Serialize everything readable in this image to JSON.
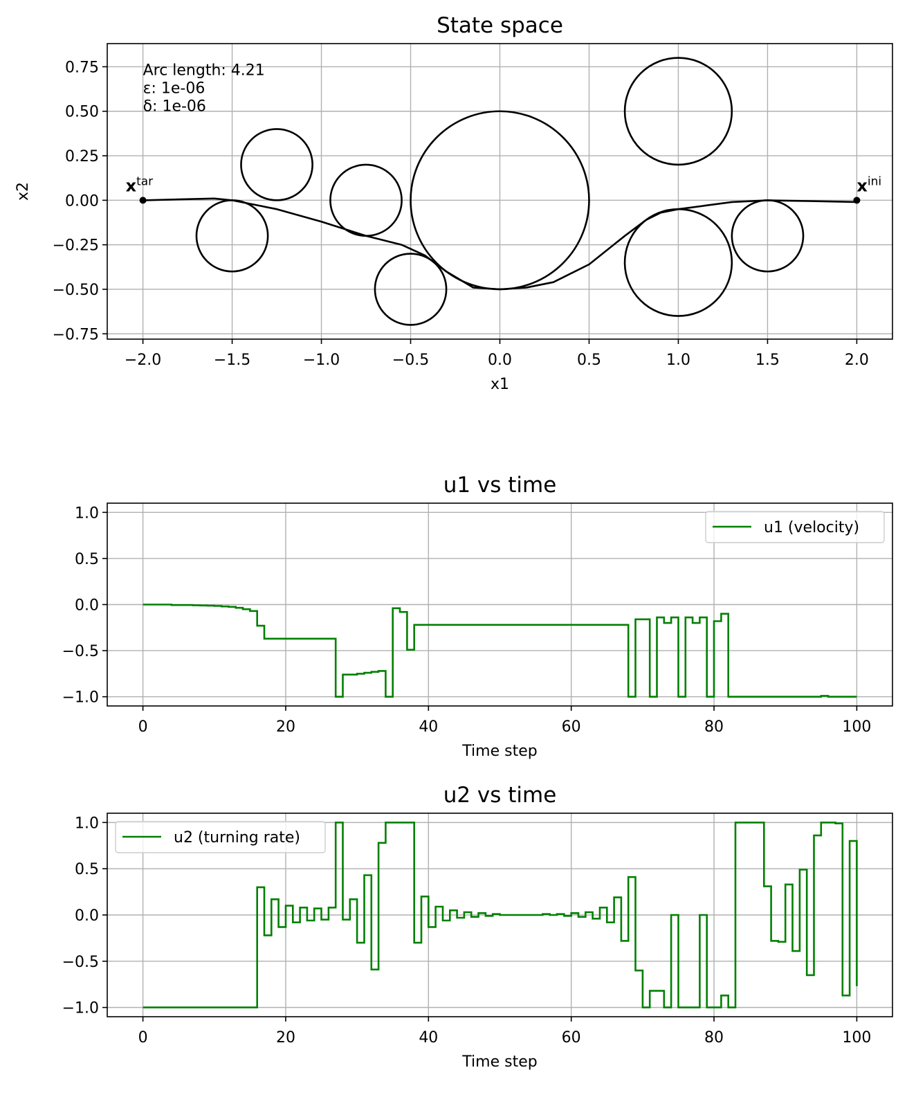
{
  "chart_data": [
    {
      "type": "scatter",
      "title": "State space",
      "xlabel": "x1",
      "ylabel": "x2",
      "xlim": [
        -2.2,
        2.2
      ],
      "ylim": [
        -0.78,
        0.88
      ],
      "xticks": [
        -2.0,
        -1.5,
        -1.0,
        -0.5,
        0.0,
        0.5,
        1.0,
        1.5,
        2.0
      ],
      "xtick_labels": [
        "−2.0",
        "−1.5",
        "−1.0",
        "−0.5",
        "0.0",
        "0.5",
        "1.0",
        "1.5",
        "2.0"
      ],
      "yticks": [
        -0.75,
        -0.5,
        -0.25,
        0.0,
        0.25,
        0.5,
        0.75
      ],
      "ytick_labels": [
        "−0.75",
        "−0.50",
        "−0.25",
        "0.00",
        "0.25",
        "0.50",
        "0.75"
      ],
      "grid": true,
      "annotations": [
        "Arc length: 4.21",
        "ε: 1e-06",
        "δ: 1e-06"
      ],
      "obstacles": [
        {
          "cx": -1.5,
          "cy": -0.2,
          "r": 0.2
        },
        {
          "cx": -1.25,
          "cy": 0.2,
          "r": 0.2
        },
        {
          "cx": -0.75,
          "cy": 0.0,
          "r": 0.2
        },
        {
          "cx": -0.5,
          "cy": -0.5,
          "r": 0.2
        },
        {
          "cx": 0.0,
          "cy": 0.0,
          "r": 0.5
        },
        {
          "cx": 1.0,
          "cy": 0.5,
          "r": 0.3
        },
        {
          "cx": 1.0,
          "cy": -0.35,
          "r": 0.3
        },
        {
          "cx": 1.5,
          "cy": -0.2,
          "r": 0.2
        }
      ],
      "path": [
        [
          2.0,
          -0.01
        ],
        [
          1.75,
          -0.005
        ],
        [
          1.5,
          0.0
        ],
        [
          1.3,
          -0.01
        ],
        [
          1.15,
          -0.03
        ],
        [
          1.0,
          -0.05
        ],
        [
          0.9,
          -0.07
        ],
        [
          0.82,
          -0.11
        ],
        [
          0.7,
          -0.2
        ],
        [
          0.5,
          -0.36
        ],
        [
          0.3,
          -0.46
        ],
        [
          0.15,
          -0.49
        ],
        [
          0.0,
          -0.5
        ],
        [
          -0.15,
          -0.49
        ],
        [
          -0.3,
          -0.4
        ],
        [
          -0.42,
          -0.31
        ],
        [
          -0.55,
          -0.25
        ],
        [
          -0.75,
          -0.2
        ],
        [
          -1.0,
          -0.12
        ],
        [
          -1.25,
          -0.05
        ],
        [
          -1.5,
          0.0
        ],
        [
          -1.6,
          0.01
        ],
        [
          -1.8,
          0.005
        ],
        [
          -2.0,
          0.0
        ]
      ],
      "points": [
        {
          "label": "x",
          "sup": "tar",
          "x": -2.0,
          "y": 0.0
        },
        {
          "label": "x",
          "sup": "ini",
          "x": 2.0,
          "y": 0.0
        }
      ]
    },
    {
      "type": "line",
      "title": "u1 vs time",
      "xlabel": "Time step",
      "ylabel": "",
      "xlim": [
        -5,
        105
      ],
      "ylim": [
        -1.1,
        1.1
      ],
      "xticks": [
        0,
        20,
        40,
        60,
        80,
        100
      ],
      "xtick_labels": [
        "0",
        "20",
        "40",
        "60",
        "80",
        "100"
      ],
      "yticks": [
        1.0,
        0.5,
        0.0,
        -0.5,
        -1.0
      ],
      "ytick_labels": [
        "1.0",
        "0.5",
        "0.0",
        "−0.5",
        "−1.0"
      ],
      "grid": true,
      "legend_position": "top-right",
      "series": [
        {
          "name": "u1 (velocity)",
          "color": "#008000",
          "x": [
            0,
            1,
            2,
            3,
            4,
            5,
            6,
            7,
            8,
            9,
            10,
            11,
            12,
            13,
            14,
            15,
            16,
            17,
            18,
            19,
            20,
            21,
            22,
            23,
            24,
            25,
            26,
            27,
            28,
            29,
            30,
            31,
            32,
            33,
            34,
            35,
            36,
            37,
            38,
            39,
            40,
            41,
            42,
            43,
            44,
            45,
            46,
            47,
            48,
            49,
            50,
            51,
            52,
            53,
            54,
            55,
            56,
            57,
            58,
            59,
            60,
            61,
            62,
            63,
            64,
            65,
            66,
            67,
            68,
            69,
            70,
            71,
            72,
            73,
            74,
            75,
            76,
            77,
            78,
            79,
            80,
            81,
            82,
            83,
            84,
            85,
            86,
            87,
            88,
            89,
            90,
            91,
            92,
            93,
            94,
            95,
            96,
            97,
            98,
            99,
            100
          ],
          "values": [
            0.0,
            0.0,
            0.0,
            0.0,
            -0.005,
            -0.005,
            -0.005,
            -0.008,
            -0.01,
            -0.012,
            -0.015,
            -0.02,
            -0.025,
            -0.035,
            -0.05,
            -0.07,
            -0.23,
            -0.37,
            -0.37,
            -0.37,
            -0.37,
            -0.37,
            -0.37,
            -0.37,
            -0.37,
            -0.37,
            -0.37,
            -1.0,
            -0.76,
            -0.76,
            -0.75,
            -0.74,
            -0.73,
            -0.72,
            -1.0,
            -0.04,
            -0.08,
            -0.49,
            -0.22,
            -0.22,
            -0.22,
            -0.22,
            -0.22,
            -0.22,
            -0.22,
            -0.22,
            -0.22,
            -0.22,
            -0.22,
            -0.22,
            -0.22,
            -0.22,
            -0.22,
            -0.22,
            -0.22,
            -0.22,
            -0.22,
            -0.22,
            -0.22,
            -0.22,
            -0.22,
            -0.22,
            -0.22,
            -0.22,
            -0.22,
            -0.22,
            -0.22,
            -0.22,
            -1.0,
            -0.16,
            -0.16,
            -1.0,
            -0.14,
            -0.2,
            -0.14,
            -1.0,
            -0.14,
            -0.2,
            -0.14,
            -1.0,
            -0.18,
            -0.1,
            -1.0,
            -1.0,
            -1.0,
            -1.0,
            -1.0,
            -1.0,
            -1.0,
            -1.0,
            -1.0,
            -1.0,
            -1.0,
            -1.0,
            -1.0,
            -0.99,
            -1.0,
            -1.0,
            -1.0,
            -1.0,
            -1.0
          ]
        }
      ]
    },
    {
      "type": "line",
      "title": "u2 vs time",
      "xlabel": "Time step",
      "ylabel": "",
      "xlim": [
        -5,
        105
      ],
      "ylim": [
        -1.1,
        1.1
      ],
      "xticks": [
        0,
        20,
        40,
        60,
        80,
        100
      ],
      "xtick_labels": [
        "0",
        "20",
        "40",
        "60",
        "80",
        "100"
      ],
      "yticks": [
        1.0,
        0.5,
        0.0,
        -0.5,
        -1.0
      ],
      "ytick_labels": [
        "1.0",
        "0.5",
        "0.0",
        "−0.5",
        "−1.0"
      ],
      "grid": true,
      "legend_position": "top-left",
      "series": [
        {
          "name": "u2 (turning rate)",
          "color": "#008000",
          "x": [
            0,
            1,
            2,
            3,
            4,
            5,
            6,
            7,
            8,
            9,
            10,
            11,
            12,
            13,
            14,
            15,
            16,
            17,
            18,
            19,
            20,
            21,
            22,
            23,
            24,
            25,
            26,
            27,
            28,
            29,
            30,
            31,
            32,
            33,
            34,
            35,
            36,
            37,
            38,
            39,
            40,
            41,
            42,
            43,
            44,
            45,
            46,
            47,
            48,
            49,
            50,
            51,
            52,
            53,
            54,
            55,
            56,
            57,
            58,
            59,
            60,
            61,
            62,
            63,
            64,
            65,
            66,
            67,
            68,
            69,
            70,
            71,
            72,
            73,
            74,
            75,
            76,
            77,
            78,
            79,
            80,
            81,
            82,
            83,
            84,
            85,
            86,
            87,
            88,
            89,
            90,
            91,
            92,
            93,
            94,
            95,
            96,
            97,
            98,
            99,
            100
          ],
          "values": [
            -1.0,
            -1.0,
            -1.0,
            -1.0,
            -1.0,
            -1.0,
            -1.0,
            -1.0,
            -1.0,
            -1.0,
            -1.0,
            -1.0,
            -1.0,
            -1.0,
            -1.0,
            -1.0,
            0.3,
            -0.22,
            0.17,
            -0.13,
            0.1,
            -0.08,
            0.08,
            -0.06,
            0.07,
            -0.05,
            0.08,
            1.0,
            -0.05,
            0.17,
            -0.3,
            0.43,
            -0.59,
            0.78,
            1.0,
            1.0,
            1.0,
            1.0,
            -0.3,
            0.2,
            -0.13,
            0.09,
            -0.06,
            0.05,
            -0.03,
            0.03,
            -0.02,
            0.02,
            -0.01,
            0.01,
            0.0,
            0.0,
            0.0,
            0.0,
            0.0,
            0.0,
            0.01,
            0.0,
            0.01,
            -0.01,
            0.02,
            -0.02,
            0.03,
            -0.04,
            0.08,
            -0.08,
            0.19,
            -0.28,
            0.41,
            -0.6,
            -1.0,
            -0.82,
            -0.82,
            -1.0,
            0.0,
            -1.0,
            -1.0,
            -1.0,
            0.0,
            -1.0,
            -1.0,
            -0.87,
            -1.0,
            1.0,
            1.0,
            1.0,
            1.0,
            0.31,
            -0.28,
            -0.29,
            0.33,
            -0.39,
            0.49,
            -0.65,
            0.86,
            1.0,
            1.0,
            0.99,
            -0.87,
            0.8,
            -0.77
          ]
        }
      ]
    }
  ]
}
